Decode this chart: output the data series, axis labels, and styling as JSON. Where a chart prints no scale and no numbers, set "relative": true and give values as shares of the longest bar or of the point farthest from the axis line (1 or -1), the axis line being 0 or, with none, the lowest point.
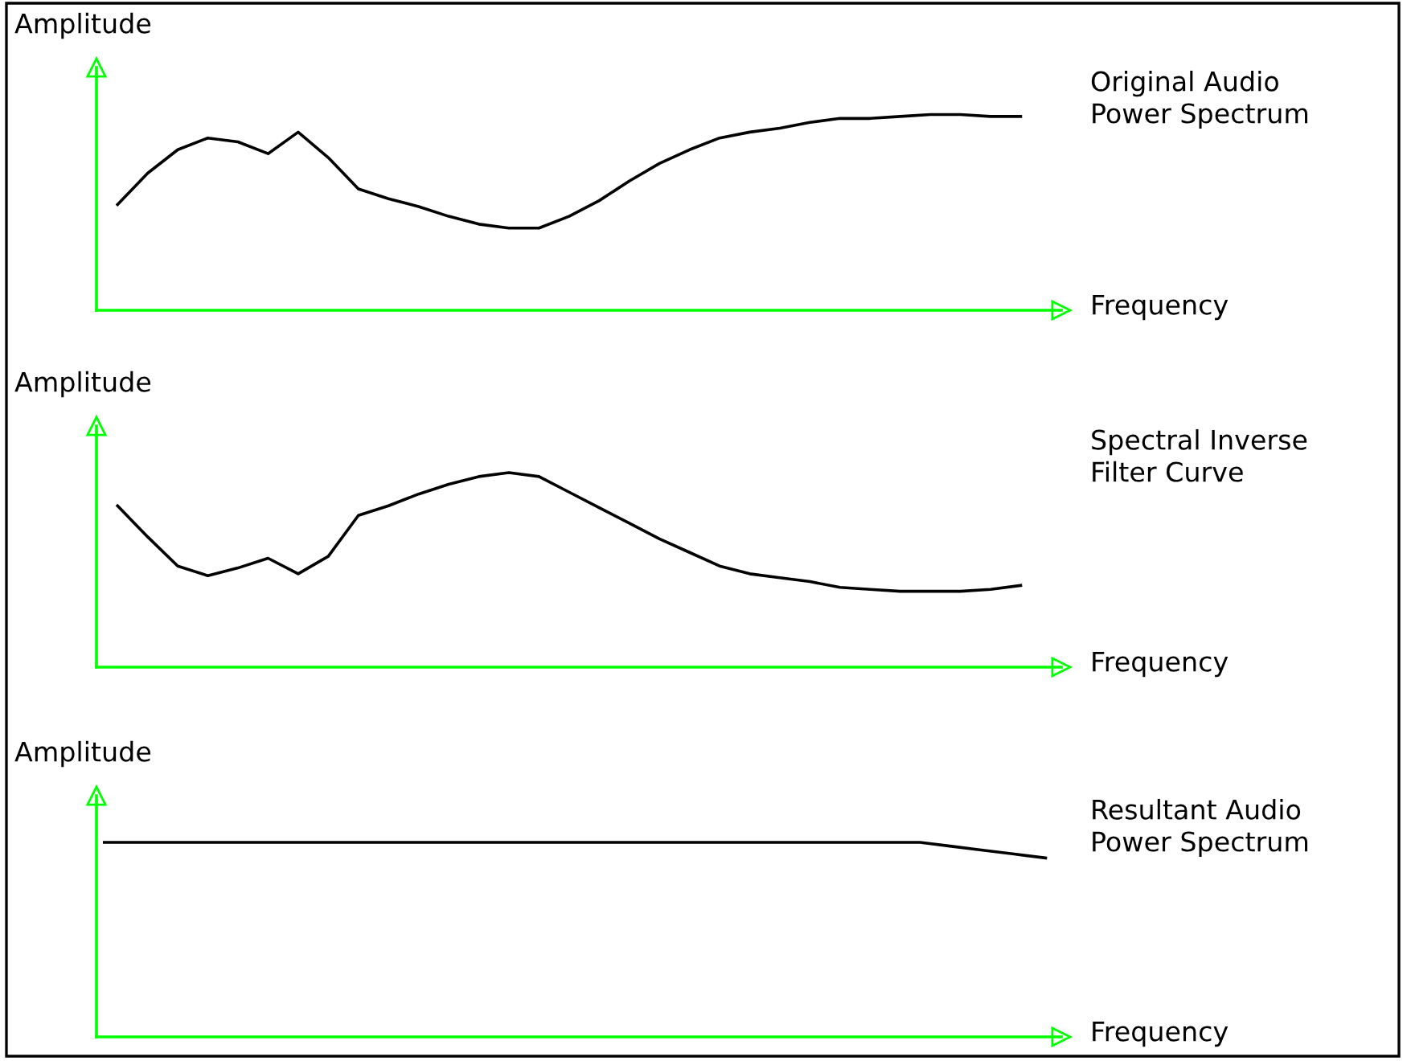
{
  "chart_data": [
    {
      "type": "line",
      "relative": true,
      "color": "#000000",
      "annotations": [
        "Original Audio\nPower Spectrum"
      ],
      "xlabel": "Frequency",
      "ylabel": "Amplitude",
      "categories": [
        null,
        null,
        null,
        null,
        null,
        null,
        null,
        null,
        null,
        null,
        null,
        null,
        null,
        null,
        null,
        null,
        null,
        null,
        null,
        null,
        null,
        null,
        null,
        null,
        null,
        null,
        null,
        null,
        null,
        null,
        null
      ],
      "values": [
        0.54,
        0.7,
        0.82,
        0.88,
        0.86,
        0.8,
        0.91,
        0.78,
        0.62,
        0.57,
        0.53,
        0.48,
        0.44,
        0.42,
        0.42,
        0.48,
        0.56,
        0.66,
        0.75,
        0.82,
        0.88,
        0.91,
        0.93,
        0.96,
        0.98,
        0.98,
        0.99,
        1.0,
        1.0,
        0.99,
        0.99
      ]
    },
    {
      "type": "line",
      "relative": true,
      "color": "#000000",
      "annotations": [
        "Spectral Inverse\nFilter Curve"
      ],
      "xlabel": "Frequency",
      "ylabel": "Amplitude",
      "categories": [
        null,
        null,
        null,
        null,
        null,
        null,
        null,
        null,
        null,
        null,
        null,
        null,
        null,
        null,
        null,
        null,
        null,
        null,
        null,
        null,
        null,
        null,
        null,
        null,
        null,
        null,
        null,
        null,
        null,
        null,
        null
      ],
      "values": [
        0.83,
        0.67,
        0.52,
        0.47,
        0.51,
        0.56,
        0.48,
        0.57,
        0.78,
        0.83,
        0.89,
        0.94,
        0.98,
        1.0,
        0.98,
        0.9,
        0.82,
        0.74,
        0.66,
        0.59,
        0.52,
        0.48,
        0.46,
        0.44,
        0.41,
        0.4,
        0.39,
        0.39,
        0.39,
        0.4,
        0.42
      ]
    },
    {
      "type": "line",
      "relative": true,
      "color": "#000000",
      "annotations": [
        "Resultant Audio\nPower Spectrum"
      ],
      "xlabel": "Frequency",
      "ylabel": "Amplitude",
      "categories": [
        null,
        null,
        null,
        null,
        null,
        null,
        null,
        null,
        null,
        null,
        null,
        null,
        null,
        null,
        null,
        null,
        null,
        null,
        null,
        null,
        null,
        null,
        null,
        null,
        null,
        null,
        null,
        null,
        null,
        null,
        null
      ],
      "values": [
        1.0,
        1.0,
        1.0,
        1.0,
        1.0,
        1.0,
        1.0,
        1.0,
        1.0,
        1.0,
        1.0,
        1.0,
        1.0,
        1.0,
        1.0,
        1.0,
        1.0,
        1.0,
        1.0,
        1.0,
        1.0,
        1.0,
        1.0,
        1.0,
        1.0,
        1.0,
        1.0,
        0.98,
        0.96,
        0.94,
        0.92
      ]
    }
  ]
}
